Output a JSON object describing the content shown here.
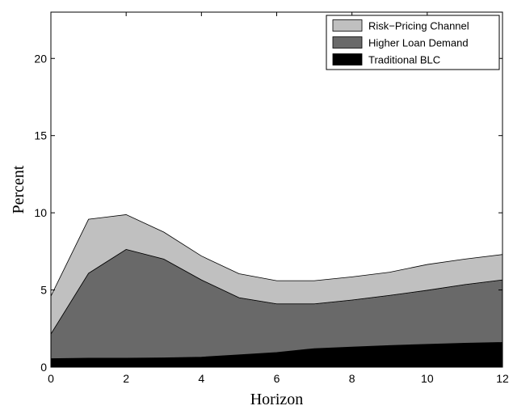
{
  "chart_data": {
    "type": "area",
    "stacked": true,
    "x": [
      0,
      1,
      2,
      3,
      4,
      5,
      6,
      7,
      8,
      9,
      10,
      11,
      12
    ],
    "xlabel": "Horizon",
    "ylabel": "Percent",
    "xlim": [
      0,
      12
    ],
    "ylim": [
      0,
      23
    ],
    "xticks": [
      0,
      2,
      4,
      6,
      8,
      10,
      12
    ],
    "yticks": [
      0,
      5,
      10,
      15,
      20
    ],
    "grid": false,
    "legend_position": "top-right",
    "series": [
      {
        "name": "Traditional BLC",
        "color": "#000000",
        "values": [
          0.55,
          0.58,
          0.58,
          0.6,
          0.65,
          0.8,
          0.95,
          1.2,
          1.3,
          1.4,
          1.48,
          1.55,
          1.6
        ]
      },
      {
        "name": "Higher Loan Demand",
        "color": "#696969",
        "values": [
          1.6,
          5.5,
          7.05,
          6.4,
          5.0,
          3.7,
          3.15,
          2.9,
          3.05,
          3.25,
          3.5,
          3.8,
          4.05
        ]
      },
      {
        "name": "Risk−Pricing Channel",
        "color": "#c0c0c0",
        "values": [
          2.45,
          3.5,
          2.25,
          1.75,
          1.55,
          1.55,
          1.5,
          1.5,
          1.5,
          1.5,
          1.67,
          1.65,
          1.65
        ]
      }
    ],
    "legend_order": [
      "Risk−Pricing Channel",
      "Higher Loan Demand",
      "Traditional BLC"
    ]
  }
}
